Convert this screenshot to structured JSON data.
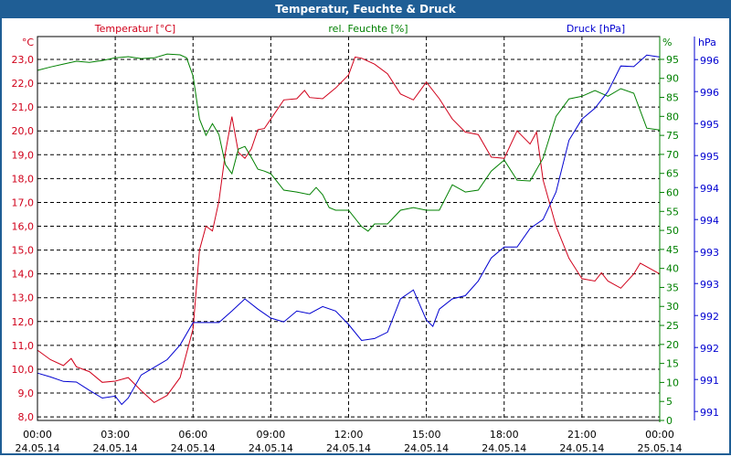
{
  "window": {
    "title": "Temperatur, Feuchte & Druck"
  },
  "colors": {
    "temperature": "#d0001a",
    "humidity": "#008000",
    "pressure": "#0000d0",
    "titlebar": "#1f5e95"
  },
  "chart_data": {
    "type": "line",
    "title": "Temperatur, Feuchte & Druck",
    "xlabel": "",
    "x_unit": "hours since 00:00 24.05.14",
    "xlim": [
      0,
      24
    ],
    "x_ticks": [
      {
        "value": 0,
        "time": "00:00",
        "date": "24.05.14"
      },
      {
        "value": 3,
        "time": "03:00",
        "date": "24.05.14"
      },
      {
        "value": 6,
        "time": "06:00",
        "date": "24.05.14"
      },
      {
        "value": 9,
        "time": "09:00",
        "date": "24.05.14"
      },
      {
        "value": 12,
        "time": "12:00",
        "date": "24.05.14"
      },
      {
        "value": 15,
        "time": "15:00",
        "date": "24.05.14"
      },
      {
        "value": 18,
        "time": "18:00",
        "date": "24.05.14"
      },
      {
        "value": 21,
        "time": "21:00",
        "date": "24.05.14"
      },
      {
        "value": 24,
        "time": "00:00",
        "date": "25.05.14"
      }
    ],
    "grid": true,
    "axes": {
      "temperature": {
        "label": "Temperatur [°C]",
        "unit": "°C",
        "ylim": [
          7.85,
          23.96
        ],
        "ticks": [
          8,
          9,
          10,
          11,
          12,
          13,
          14,
          15,
          16,
          17,
          18,
          19,
          20,
          21,
          22,
          23
        ],
        "tick_labels": [
          "8,0",
          "9,0",
          "10,0",
          "11,0",
          "12,0",
          "13,0",
          "14,0",
          "15,0",
          "16,0",
          "17,0",
          "18,0",
          "19,0",
          "20,0",
          "21,0",
          "22,0",
          "23,0"
        ]
      },
      "humidity": {
        "label": "rel. Feuchte [%]",
        "unit": "%",
        "ylim": [
          0,
          101
        ],
        "ticks": [
          0,
          5,
          10,
          15,
          20,
          25,
          30,
          35,
          40,
          45,
          50,
          55,
          60,
          65,
          70,
          75,
          80,
          85,
          90,
          95
        ],
        "tick_labels": [
          "0",
          "5",
          "10",
          "15",
          "20",
          "25",
          "30",
          "35",
          "40",
          "45",
          "50",
          "55",
          "60",
          "65",
          "70",
          "75",
          "80",
          "85",
          "90",
          "95"
        ]
      },
      "pressure": {
        "label": "Druck [hPa]",
        "unit": "hPa",
        "ylim": [
          990.56,
          996.56
        ],
        "ticks": [
          990.7,
          991.2,
          991.7,
          992.2,
          992.7,
          993.2,
          993.7,
          994.2,
          994.7,
          995.2,
          995.7,
          996.2
        ],
        "tick_labels": [
          "991",
          "991",
          "992",
          "992",
          "993",
          "993",
          "994",
          "994",
          "995",
          "995",
          "996",
          "996"
        ]
      }
    },
    "series": [
      {
        "name": "Temperatur [°C]",
        "axis": "temperature",
        "x": [
          0,
          0.5,
          1,
          1.3,
          1.5,
          2,
          2.5,
          3,
          3.5,
          4,
          4.5,
          5,
          5.5,
          6,
          6.25,
          6.5,
          6.75,
          7,
          7.25,
          7.5,
          7.75,
          8,
          8.25,
          8.5,
          8.75,
          9,
          9.5,
          10,
          10.3,
          10.5,
          11,
          11.5,
          12,
          12.25,
          12.5,
          13,
          13.5,
          14,
          14.5,
          15,
          15.5,
          16,
          16.5,
          17,
          17.5,
          18,
          18.5,
          19,
          19.25,
          19.5,
          20,
          20.5,
          21,
          21.5,
          21.75,
          22,
          22.5,
          23,
          23.25,
          24
        ],
        "values": [
          10.8,
          10.4,
          10.15,
          10.45,
          10.1,
          9.9,
          9.45,
          9.5,
          9.65,
          9.1,
          8.6,
          8.9,
          9.65,
          11.7,
          15.0,
          16.0,
          15.8,
          17.05,
          19.1,
          20.6,
          19.1,
          18.85,
          19.25,
          20.05,
          20.1,
          20.5,
          21.3,
          21.35,
          21.7,
          21.4,
          21.35,
          21.8,
          22.35,
          23.1,
          23.05,
          22.8,
          22.4,
          21.55,
          21.3,
          22.05,
          21.35,
          20.5,
          19.95,
          19.85,
          18.9,
          18.85,
          20.0,
          19.45,
          19.95,
          17.95,
          16.0,
          14.65,
          13.8,
          13.7,
          14.05,
          13.7,
          13.4,
          14.0,
          14.45,
          14.0
        ]
      },
      {
        "name": "rel. Feuchte [%]",
        "axis": "humidity",
        "x": [
          0,
          0.5,
          1,
          1.5,
          2,
          2.5,
          3,
          3.5,
          4,
          4.5,
          5,
          5.5,
          5.75,
          6,
          6.25,
          6.5,
          6.75,
          7,
          7.25,
          7.5,
          7.75,
          8,
          8.25,
          8.5,
          8.75,
          9,
          9.5,
          10,
          10.5,
          10.75,
          11,
          11.25,
          11.5,
          12,
          12.5,
          12.75,
          13,
          13.5,
          14,
          14.5,
          15,
          15.5,
          16,
          16.5,
          17,
          17.5,
          18,
          18.5,
          19,
          19.5,
          20,
          20.5,
          21,
          21.5,
          22,
          22.5,
          23,
          23.5,
          24
        ],
        "values": [
          92.1,
          93.0,
          93.75,
          94.5,
          94.2,
          94.7,
          95.4,
          95.7,
          95.2,
          95.4,
          96.4,
          96.2,
          95.4,
          90.6,
          79.3,
          75.0,
          78.1,
          75.2,
          67.3,
          64.9,
          71.4,
          72.1,
          69.2,
          66.1,
          65.6,
          64.9,
          60.6,
          60.1,
          59.4,
          61.3,
          59.4,
          56.0,
          55.3,
          55.3,
          51.0,
          49.8,
          51.7,
          51.7,
          55.3,
          56.0,
          55.3,
          55.3,
          62.0,
          60.1,
          60.6,
          65.6,
          68.5,
          63.2,
          63.0,
          69.0,
          80.0,
          84.6,
          85.3,
          86.8,
          85.3,
          87.3,
          86.1,
          76.9,
          76.4
        ]
      },
      {
        "name": "Druck [hPa]",
        "axis": "pressure",
        "x": [
          0,
          0.5,
          1,
          1.5,
          2,
          2.5,
          3,
          3.25,
          3.5,
          4,
          4.5,
          5,
          5.5,
          6,
          6.5,
          7,
          7.5,
          8,
          8.5,
          9,
          9.5,
          10,
          10.5,
          11,
          11.5,
          12,
          12.5,
          13,
          13.5,
          14,
          14.5,
          15,
          15.25,
          15.5,
          16,
          16.5,
          17,
          17.5,
          18,
          18.5,
          19,
          19.5,
          20,
          20.5,
          21,
          21.5,
          22,
          22.5,
          23,
          23.5,
          24
        ],
        "values": [
          991.3,
          991.24,
          991.17,
          991.16,
          991.03,
          990.91,
          990.94,
          990.81,
          990.91,
          991.27,
          991.39,
          991.51,
          991.74,
          992.09,
          992.09,
          992.09,
          992.27,
          992.46,
          992.3,
          992.16,
          992.1,
          992.27,
          992.23,
          992.34,
          992.27,
          992.06,
          991.81,
          991.84,
          991.94,
          992.46,
          992.6,
          992.13,
          992.03,
          992.3,
          992.46,
          992.51,
          992.74,
          993.1,
          993.27,
          993.27,
          993.56,
          993.7,
          994.13,
          994.94,
          995.27,
          995.44,
          995.7,
          996.1,
          996.09,
          996.27,
          996.24
        ]
      }
    ]
  }
}
